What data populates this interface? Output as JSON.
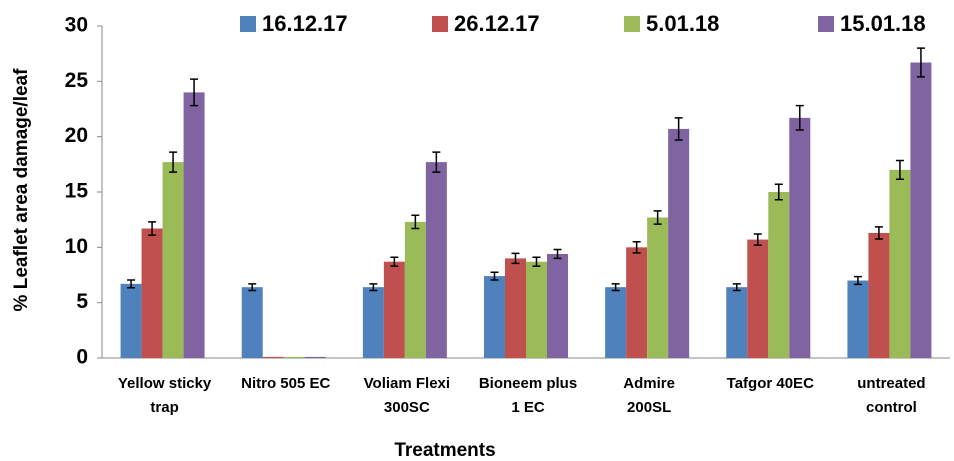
{
  "chart_data": {
    "type": "bar",
    "y_label": "% Leaflet area damage/leaf",
    "x_label": "Treatments",
    "categories": [
      [
        "Yellow sticky",
        "trap"
      ],
      [
        "Nitro 505 EC"
      ],
      [
        "Voliam Flexi",
        "300SC"
      ],
      [
        "Bioneem plus",
        "1 EC"
      ],
      [
        "Admire",
        "200SL"
      ],
      [
        "Tafgor 40EC"
      ],
      [
        "untreated",
        "control"
      ]
    ],
    "series": [
      {
        "name": "16.12.17",
        "color": "#4f81bd",
        "values": [
          6.7,
          6.4,
          6.4,
          7.4,
          6.4,
          6.4,
          7.0
        ],
        "errors": [
          0.35,
          0.3,
          0.3,
          0.35,
          0.3,
          0.3,
          0.35
        ]
      },
      {
        "name": "26.12.17",
        "color": "#c0504d",
        "values": [
          11.7,
          0.1,
          8.7,
          9.0,
          10.0,
          10.7,
          11.3
        ],
        "errors": [
          0.6,
          0,
          0.4,
          0.45,
          0.5,
          0.5,
          0.55
        ]
      },
      {
        "name": "5.01.18",
        "color": "#9bbb59",
        "values": [
          17.7,
          0.1,
          12.3,
          8.7,
          12.7,
          15.0,
          17.0
        ],
        "errors": [
          0.9,
          0,
          0.6,
          0.4,
          0.6,
          0.7,
          0.85
        ]
      },
      {
        "name": "15.01.18",
        "color": "#8064a2",
        "values": [
          24.0,
          0.1,
          17.7,
          9.4,
          20.7,
          21.7,
          26.7
        ],
        "errors": [
          1.2,
          0,
          0.9,
          0.4,
          1.0,
          1.1,
          1.3
        ]
      }
    ],
    "ylim": [
      0,
      30
    ],
    "yticks": [
      0,
      5,
      10,
      15,
      20,
      25,
      30
    ],
    "grid": false,
    "legend": "top"
  }
}
